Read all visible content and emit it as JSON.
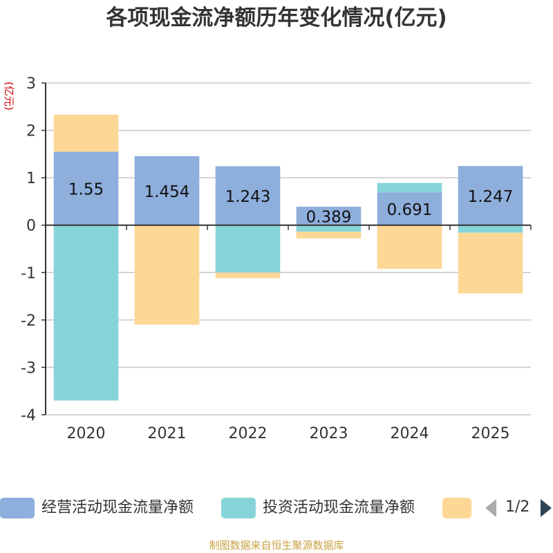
{
  "chart_data": {
    "type": "bar",
    "stacked": true,
    "title": "各项现金流净额历年变化情况(亿元)",
    "ylabel": "(亿元)",
    "xlabel": "",
    "ylim": [
      -4,
      3
    ],
    "yticks": [
      3,
      2,
      1,
      0,
      -1,
      -2,
      -3,
      -4
    ],
    "grid": true,
    "categories": [
      "2020",
      "2021",
      "2022",
      "2023",
      "2024",
      "2025"
    ],
    "series": [
      {
        "name": "经营活动现金流量净额",
        "color": "#8eaedc",
        "values": [
          1.55,
          1.454,
          1.243,
          0.389,
          0.691,
          1.247
        ],
        "labels": [
          "1.55",
          "1.454",
          "1.243",
          "0.389",
          "0.691",
          "1.247"
        ]
      },
      {
        "name": "投资活动现金流量净额",
        "color": "#87d4d8",
        "values": [
          -3.7,
          0,
          -1.0,
          -0.14,
          0.2,
          -0.16
        ]
      },
      {
        "name": "",
        "color": "#fdd795",
        "values": [
          0.78,
          -2.1,
          -0.12,
          -0.14,
          -0.92,
          -1.28
        ]
      }
    ]
  },
  "legend": {
    "pager": "1/2"
  },
  "source": "制图数据来自恒生聚源数据库"
}
